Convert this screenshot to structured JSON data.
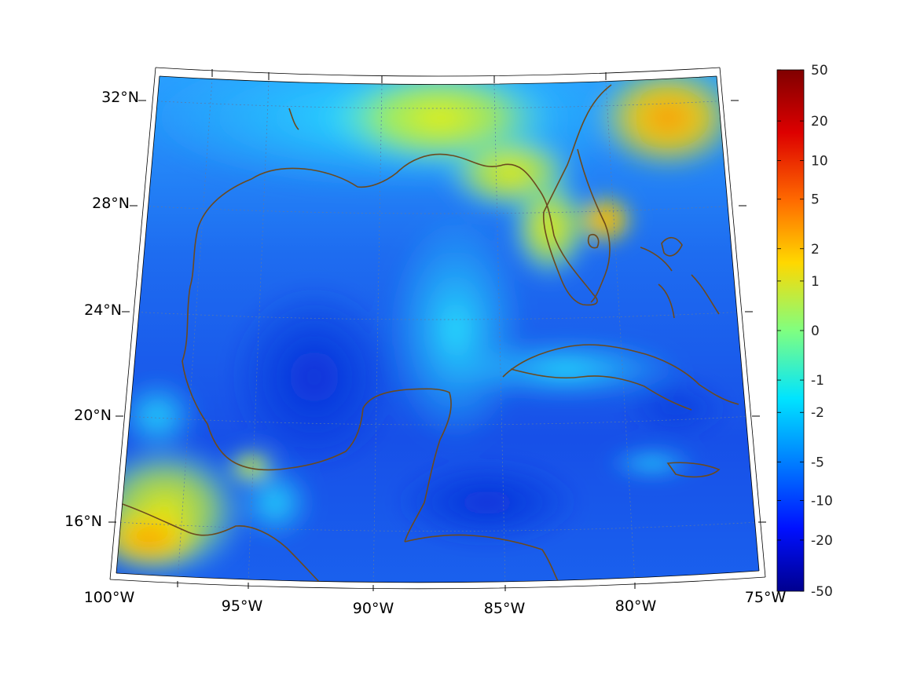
{
  "map": {
    "projection": "conic",
    "lat_range": [
      14,
      33
    ],
    "lon_range": [
      -100,
      -75
    ],
    "grid": true,
    "coastline_color": "#6b4a1e"
  },
  "axes": {
    "lon_ticks": [
      "100°W",
      "95°W",
      "90°W",
      "85°W",
      "80°W",
      "75°W"
    ],
    "lat_ticks": [
      "16°N",
      "20°N",
      "24°N",
      "28°N",
      "32°N"
    ]
  },
  "colorbar": {
    "colormap": "jet",
    "placement": "right",
    "ticks": [
      "50",
      "20",
      "10",
      "5",
      "2",
      "1",
      "0",
      "-1",
      "-2",
      "-5",
      "-10",
      "-20",
      "-50"
    ],
    "tick_fractions": [
      0,
      0.098,
      0.174,
      0.248,
      0.343,
      0.405,
      0.5,
      0.595,
      0.657,
      0.752,
      0.826,
      0.902,
      1
    ]
  }
}
